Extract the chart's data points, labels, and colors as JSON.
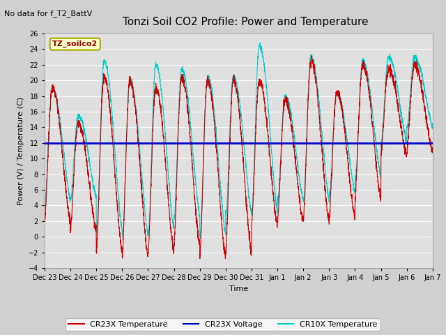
{
  "title": "Tonzi Soil CO2 Profile: Power and Temperature",
  "subtitle": "No data for f_T2_BattV",
  "xlabel": "Time",
  "ylabel": "Power (V) / Temperature (C)",
  "ylim": [
    -4,
    26
  ],
  "yticks": [
    -4,
    -2,
    0,
    2,
    4,
    6,
    8,
    10,
    12,
    14,
    16,
    18,
    20,
    22,
    24,
    26
  ],
  "n_days": 15,
  "x_tick_labels": [
    "Dec 23",
    "Dec 24",
    "Dec 25",
    "Dec 26",
    "Dec 27",
    "Dec 28",
    "Dec 29",
    "Dec 30",
    "Dec 31",
    "Jan 1",
    "Jan 2",
    "Jan 3",
    "Jan 4",
    "Jan 5",
    "Jan 6",
    "Jan 7"
  ],
  "voltage_level": 12.0,
  "fig_bg_color": "#d0d0d0",
  "plot_bg_color": "#e0e0e0",
  "cr23x_color": "#cc0000",
  "cr10x_color": "#00cccc",
  "voltage_color": "#0000cc",
  "legend_label_cr23x": "CR23X Temperature",
  "legend_label_voltage": "CR23X Voltage",
  "legend_label_cr10x": "CR10X Temperature",
  "annotation_label": "TZ_soilco2",
  "annotation_bg": "#ffffcc",
  "annotation_border": "#aaaa00",
  "title_fontsize": 11,
  "label_fontsize": 8,
  "tick_fontsize": 7,
  "legend_fontsize": 8,
  "grid_color": "#ffffff",
  "cr23x_peaks": [
    19.0,
    14.5,
    20.5,
    20.0,
    19.0,
    20.5,
    20.0,
    20.0,
    20.0,
    17.5,
    22.5,
    18.5,
    22.0,
    21.5,
    22.0
  ],
  "cr23x_mins": [
    2.0,
    1.0,
    -2.0,
    -2.5,
    -2.0,
    -1.0,
    -2.5,
    -2.0,
    1.5,
    2.0,
    2.0,
    2.5,
    5.0,
    10.5,
    11.0
  ],
  "cr10x_peaks": [
    19.0,
    15.5,
    22.5,
    20.0,
    22.0,
    21.5,
    20.5,
    20.5,
    24.5,
    18.0,
    23.0,
    18.5,
    22.5,
    23.0,
    23.0
  ],
  "cr10x_mins": [
    4.5,
    5.0,
    0.5,
    0.0,
    0.5,
    2.5,
    0.0,
    3.0,
    3.0,
    4.5,
    4.5,
    5.5,
    7.5,
    12.0,
    14.0
  ]
}
